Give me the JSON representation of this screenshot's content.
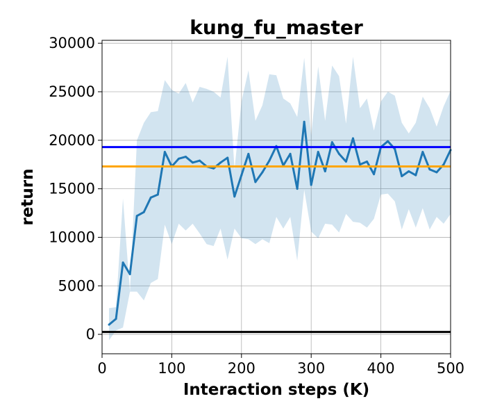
{
  "chart_data": {
    "type": "line",
    "title": "kung_fu_master",
    "xlabel": "Interaction steps (K)",
    "ylabel": "return",
    "xlim": [
      0,
      500
    ],
    "ylim": [
      -2000,
      30300
    ],
    "xticks": [
      0,
      100,
      200,
      300,
      400,
      500
    ],
    "yticks": [
      0,
      5000,
      10000,
      15000,
      20000,
      25000,
      30000
    ],
    "xtick_labels": [
      "0",
      "100",
      "200",
      "300",
      "400",
      "500"
    ],
    "ytick_labels": [
      "0",
      "5000",
      "10000",
      "15000",
      "20000",
      "25000",
      "30000"
    ],
    "grid": true,
    "series": [
      {
        "style": "line-with-band",
        "color": "#1f77b4",
        "band_color": "#1f77b4",
        "x": [
          10,
          20,
          30,
          40,
          50,
          60,
          70,
          80,
          90,
          100,
          110,
          120,
          130,
          140,
          150,
          160,
          170,
          180,
          190,
          200,
          210,
          220,
          230,
          240,
          250,
          260,
          270,
          280,
          290,
          300,
          310,
          320,
          330,
          340,
          350,
          360,
          370,
          380,
          390,
          400,
          410,
          420,
          430,
          440,
          450,
          460,
          470,
          480,
          490,
          500
        ],
        "values": [
          1000,
          1600,
          7400,
          6200,
          12200,
          12600,
          14100,
          14400,
          18800,
          17300,
          18100,
          18300,
          17700,
          17900,
          17300,
          17100,
          17700,
          18200,
          14200,
          16400,
          18600,
          15700,
          16700,
          17900,
          19400,
          17400,
          18600,
          15000,
          21900,
          15400,
          18800,
          16800,
          19800,
          18600,
          17800,
          20200,
          17500,
          17800,
          16500,
          19300,
          19900,
          19100,
          16300,
          16800,
          16400,
          18800,
          17000,
          16700,
          17500,
          19000
        ],
        "upper": [
          2700,
          2800,
          14000,
          4400,
          20000,
          21800,
          22900,
          23000,
          26200,
          25200,
          24800,
          25900,
          23900,
          25500,
          25300,
          25000,
          24400,
          28600,
          17000,
          24000,
          27200,
          22000,
          23600,
          26800,
          26700,
          24300,
          23800,
          22400,
          28500,
          20500,
          27600,
          22000,
          27700,
          26600,
          21700,
          28600,
          23300,
          24300,
          21000,
          24000,
          25000,
          24600,
          21800,
          20700,
          21800,
          24500,
          23300,
          21400,
          23500,
          25100
        ],
        "lower": [
          -600,
          400,
          700,
          4400,
          4400,
          3500,
          5300,
          5700,
          11300,
          9300,
          11400,
          10700,
          11400,
          10400,
          9300,
          9100,
          10900,
          7700,
          10900,
          9900,
          9800,
          9300,
          9800,
          9400,
          12100,
          10900,
          12100,
          7600,
          14900,
          10600,
          9900,
          11400,
          11300,
          10500,
          12400,
          11600,
          11500,
          11000,
          11900,
          14400,
          14500,
          13700,
          10800,
          12900,
          11000,
          13000,
          10800,
          12100,
          11400,
          12400
        ]
      }
    ],
    "hlines": [
      {
        "value": 19300,
        "color": "#0000ff"
      },
      {
        "value": 17300,
        "color": "#ffa500"
      },
      {
        "value": 250,
        "color": "#000000"
      }
    ]
  }
}
